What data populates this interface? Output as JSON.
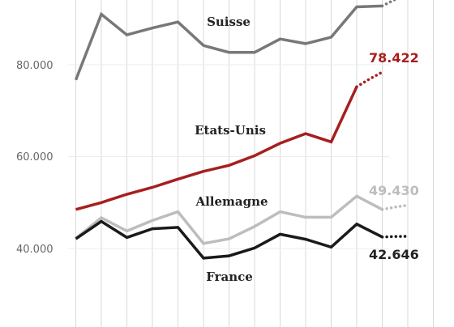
{
  "chart_data": {
    "type": "line",
    "x_index": [
      0,
      1,
      2,
      3,
      4,
      5,
      6,
      7,
      8,
      9,
      10,
      11,
      12,
      13,
      14,
      15
    ],
    "ylim": [
      22000,
      95000
    ],
    "yticks": [
      {
        "value": 40000,
        "label": "40.000"
      },
      {
        "value": 60000,
        "label": "60.000"
      },
      {
        "value": 80000,
        "label": "80.000"
      }
    ],
    "grid": "vertical",
    "series": [
      {
        "name": "Suisse",
        "color": "#787878",
        "values": [
          76700,
          91000,
          86500,
          88000,
          89300,
          84200,
          82700,
          82700,
          85600,
          84600,
          86000,
          92600,
          92800
        ],
        "projection": [
          92800,
          94200,
          95500
        ],
        "end_label": ""
      },
      {
        "name": "Etats-Unis",
        "color": "#a61f1f",
        "values": [
          48500,
          50000,
          51800,
          53300,
          55100,
          56800,
          58100,
          60200,
          62900,
          65000,
          63200,
          75200
        ],
        "projection": [
          75200,
          76900,
          78400
        ],
        "end_label": "78.422"
      },
      {
        "name": "Allemagne",
        "color": "#bdbdbd",
        "values": [
          42200,
          46700,
          43800,
          46100,
          48000,
          41100,
          42100,
          44800,
          48000,
          46800,
          46800,
          51400,
          48500
        ],
        "projection": [
          48500,
          49000,
          49430
        ],
        "end_label": "49.430"
      },
      {
        "name": "France",
        "color": "#1a1a1a",
        "values": [
          42100,
          45900,
          42400,
          44300,
          44600,
          37900,
          38400,
          40100,
          43100,
          42000,
          40300,
          45300,
          42500
        ],
        "projection": [
          42500,
          42600,
          42646
        ],
        "end_label": "42.646"
      }
    ]
  }
}
